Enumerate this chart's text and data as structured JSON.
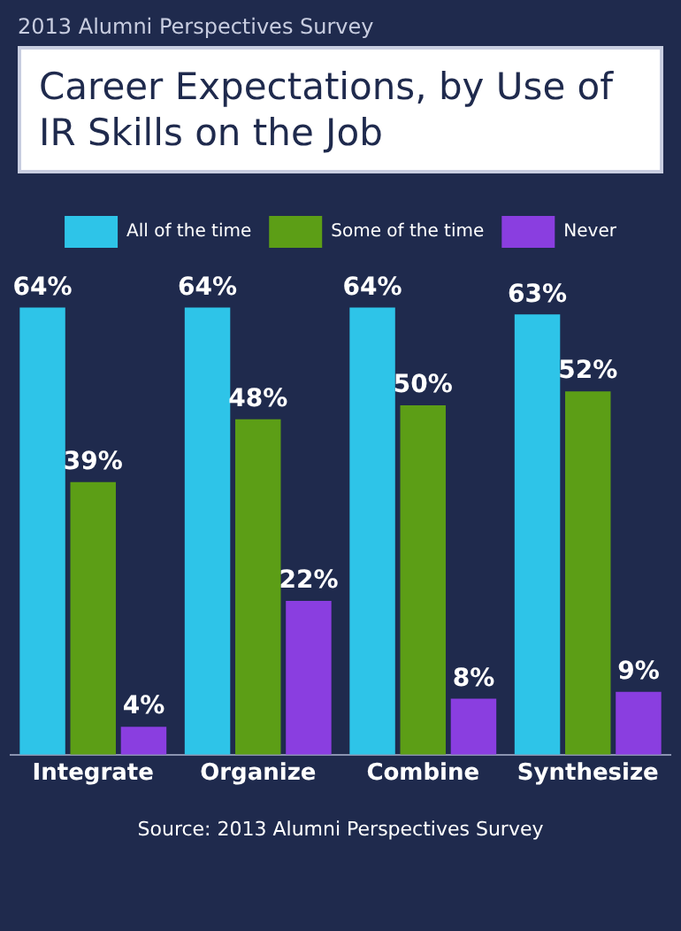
{
  "chart_data": {
    "type": "bar",
    "subtitle": "2013 Alumni Perspectives Survey",
    "title": "Career Expectations, by Use of IR Skills on the Job",
    "categories": [
      "Integrate",
      "Organize",
      "Combine",
      "Synthesize"
    ],
    "series": [
      {
        "name": "All of the time",
        "color": "#2ec4e8",
        "values": [
          64,
          64,
          64,
          63
        ],
        "value_labels": [
          "64%",
          "64%",
          "64%",
          "63%"
        ]
      },
      {
        "name": "Some of the time",
        "color": "#5c9e16",
        "values": [
          39,
          48,
          50,
          52
        ],
        "value_labels": [
          "39%",
          "48%",
          "50%",
          "52%"
        ]
      },
      {
        "name": "Never",
        "color": "#8a3ee0",
        "values": [
          4,
          22,
          8,
          9
        ],
        "value_labels": [
          "4%",
          "22%",
          "8%",
          "9%"
        ]
      }
    ],
    "legend": "top",
    "grid": false,
    "annotations": [
      "Source: 2013 Alumni Perspectives Survey"
    ]
  }
}
